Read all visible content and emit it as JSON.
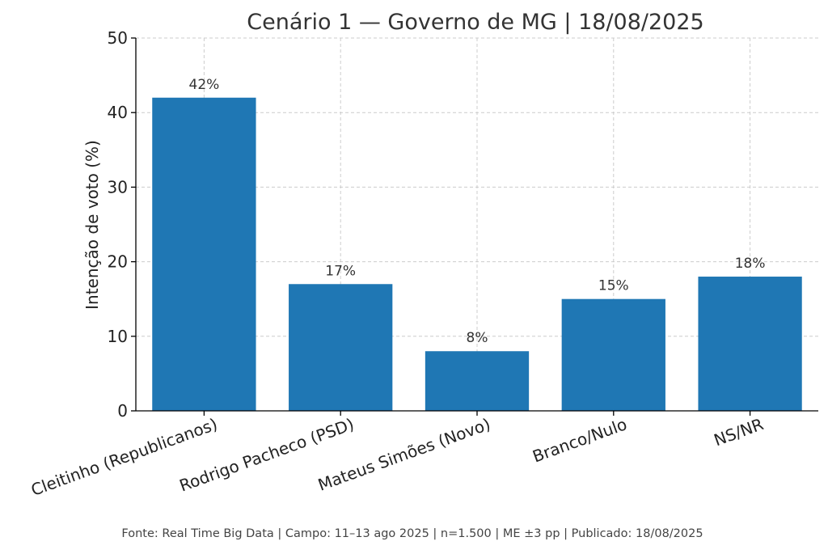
{
  "chart_data": {
    "type": "bar",
    "title": "Cenário 1 — Governo de MG | 18/08/2025",
    "xlabel": "",
    "ylabel": "Intenção de voto (%)",
    "categories": [
      "Cleitinho (Republicanos)",
      "Rodrigo Pacheco (PSD)",
      "Mateus Simões (Novo)",
      "Branco/Nulo",
      "NS/NR"
    ],
    "values": [
      42,
      17,
      8,
      15,
      18
    ],
    "data_labels": [
      "42%",
      "17%",
      "8%",
      "15%",
      "18%"
    ],
    "ylim": [
      0,
      50
    ],
    "yticks": [
      0,
      10,
      20,
      30,
      40,
      50
    ],
    "grid": true,
    "bar_color": "#1f77b4"
  },
  "footer": {
    "note": "Fonte: Real Time Big Data | Campo: 11–13 ago 2025 | n=1.500 | ME ±3 pp | Publicado: 18/08/2025"
  }
}
